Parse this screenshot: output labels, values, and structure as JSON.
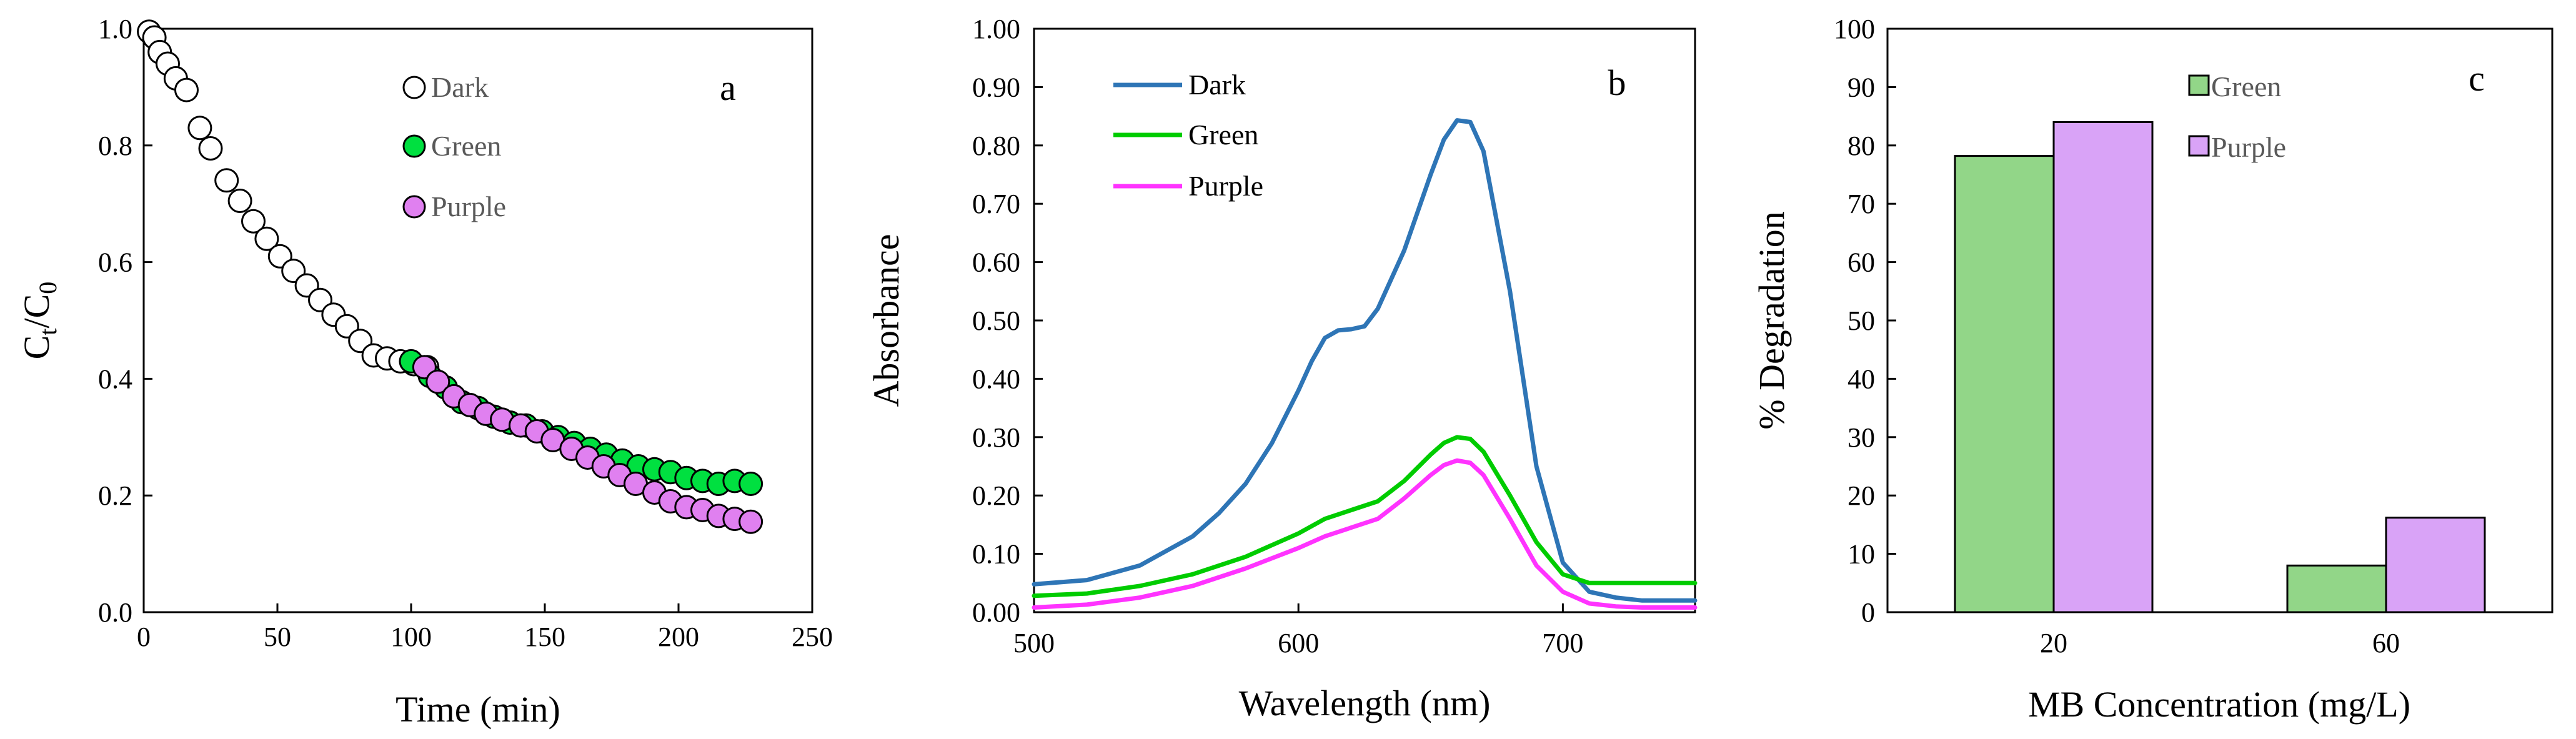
{
  "chart_data": [
    {
      "type": "scatter",
      "panel_label": "a",
      "xlabel": "Time (min)",
      "ylabel_main": "C",
      "ylabel_sub1": "t",
      "ylabel_mid": "/C",
      "ylabel_sub2": "0",
      "xlim": [
        0,
        250
      ],
      "ylim": [
        0,
        1.0
      ],
      "xticks": [
        0,
        50,
        100,
        150,
        200,
        250
      ],
      "yticks": [
        0.0,
        0.2,
        0.4,
        0.6,
        0.8,
        1.0
      ],
      "ytick_labels": [
        "0.0",
        "0.2",
        "0.4",
        "0.6",
        "0.8",
        "1.0"
      ],
      "legend_position": "top-center",
      "series": [
        {
          "name": "Dark",
          "fill": "#ffffff",
          "stroke": "#000000",
          "x": [
            2,
            4,
            6,
            9,
            12,
            16,
            21,
            25,
            31,
            36,
            41,
            46,
            51,
            56,
            61,
            66,
            71,
            76,
            81,
            86,
            91,
            96,
            101,
            106
          ],
          "y": [
            0.995,
            0.985,
            0.96,
            0.94,
            0.915,
            0.895,
            0.83,
            0.795,
            0.74,
            0.705,
            0.67,
            0.64,
            0.61,
            0.585,
            0.56,
            0.535,
            0.51,
            0.49,
            0.465,
            0.44,
            0.435,
            0.43,
            0.425,
            0.42
          ]
        },
        {
          "name": "Green",
          "fill": "#00e040",
          "stroke": "#000000",
          "x": [
            100,
            107,
            113,
            119,
            125,
            131,
            137,
            143,
            149,
            155,
            161,
            167,
            173,
            179,
            185,
            191,
            197,
            203,
            209,
            215,
            221,
            227
          ],
          "y": [
            0.43,
            0.405,
            0.385,
            0.36,
            0.35,
            0.335,
            0.325,
            0.32,
            0.31,
            0.3,
            0.29,
            0.28,
            0.27,
            0.26,
            0.25,
            0.245,
            0.24,
            0.23,
            0.225,
            0.22,
            0.225,
            0.22
          ]
        },
        {
          "name": "Purple",
          "fill": "#e080f0",
          "stroke": "#000000",
          "x": [
            105,
            110,
            116,
            122,
            128,
            134,
            141,
            147,
            153,
            160,
            166,
            172,
            178,
            184,
            191,
            197,
            203,
            209,
            215,
            221,
            227
          ],
          "y": [
            0.42,
            0.395,
            0.37,
            0.355,
            0.34,
            0.33,
            0.32,
            0.31,
            0.295,
            0.28,
            0.265,
            0.25,
            0.235,
            0.22,
            0.205,
            0.19,
            0.18,
            0.175,
            0.165,
            0.16,
            0.155
          ]
        }
      ]
    },
    {
      "type": "line",
      "panel_label": "b",
      "xlabel": "Wavelength (nm)",
      "ylabel": "Absorbance",
      "xlim": [
        500,
        750
      ],
      "ylim": [
        0,
        1.0
      ],
      "xticks": [
        500,
        600,
        700
      ],
      "yticks": [
        0.0,
        0.1,
        0.2,
        0.3,
        0.4,
        0.5,
        0.6,
        0.7,
        0.8,
        0.9,
        1.0
      ],
      "ytick_labels": [
        "0.00",
        "0.10",
        "0.20",
        "0.30",
        "0.40",
        "0.50",
        "0.60",
        "0.70",
        "0.80",
        "0.90",
        "1.00"
      ],
      "legend_position": "top-left",
      "series": [
        {
          "name": "Dark",
          "color": "#2e75b6",
          "x": [
            500,
            520,
            540,
            560,
            570,
            580,
            590,
            600,
            605,
            610,
            615,
            620,
            625,
            630,
            640,
            650,
            655,
            660,
            665,
            670,
            680,
            690,
            700,
            710,
            720,
            730,
            740,
            750
          ],
          "y": [
            0.048,
            0.055,
            0.08,
            0.13,
            0.17,
            0.22,
            0.29,
            0.38,
            0.43,
            0.47,
            0.483,
            0.485,
            0.49,
            0.52,
            0.62,
            0.75,
            0.81,
            0.843,
            0.84,
            0.79,
            0.55,
            0.25,
            0.085,
            0.035,
            0.025,
            0.02,
            0.02,
            0.02
          ]
        },
        {
          "name": "Green",
          "color": "#00cc00",
          "x": [
            500,
            520,
            540,
            560,
            580,
            600,
            610,
            620,
            630,
            640,
            650,
            655,
            660,
            665,
            670,
            680,
            690,
            700,
            710,
            720,
            730,
            740,
            750
          ],
          "y": [
            0.028,
            0.032,
            0.045,
            0.065,
            0.095,
            0.135,
            0.16,
            0.175,
            0.19,
            0.225,
            0.27,
            0.29,
            0.3,
            0.297,
            0.275,
            0.2,
            0.12,
            0.065,
            0.05,
            0.05,
            0.05,
            0.05,
            0.05
          ]
        },
        {
          "name": "Purple",
          "color": "#ff33ff",
          "x": [
            500,
            520,
            540,
            560,
            580,
            600,
            610,
            620,
            630,
            640,
            650,
            655,
            660,
            665,
            670,
            680,
            690,
            700,
            710,
            720,
            730,
            740,
            750
          ],
          "y": [
            0.008,
            0.013,
            0.025,
            0.045,
            0.075,
            0.11,
            0.13,
            0.145,
            0.16,
            0.195,
            0.235,
            0.252,
            0.26,
            0.256,
            0.235,
            0.16,
            0.08,
            0.035,
            0.015,
            0.01,
            0.008,
            0.008,
            0.008
          ]
        }
      ]
    },
    {
      "type": "bar",
      "panel_label": "c",
      "xlabel": "MB Concentration (mg/L)",
      "ylabel": "% Degradation",
      "ylim": [
        0,
        100
      ],
      "yticks": [
        0,
        10,
        20,
        30,
        40,
        50,
        60,
        70,
        80,
        90,
        100
      ],
      "ytick_labels": [
        "0",
        "10",
        "20",
        "30",
        "40",
        "50",
        "60",
        "70",
        "80",
        "90",
        "100"
      ],
      "categories": [
        "20",
        "60"
      ],
      "legend_position": "top-center",
      "series": [
        {
          "name": "Green",
          "color": "#92d688",
          "values": [
            78.2,
            8.0
          ]
        },
        {
          "name": "Purple",
          "color": "#d9a3f7",
          "values": [
            84.0,
            16.2
          ]
        }
      ]
    }
  ]
}
